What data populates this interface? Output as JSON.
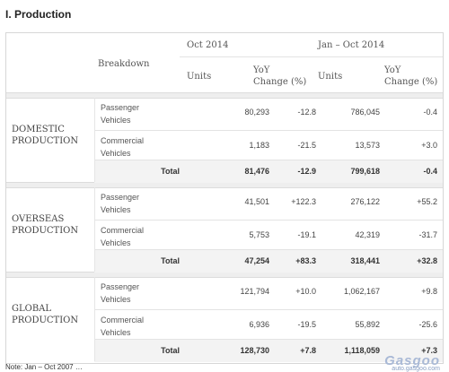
{
  "title": "I. Production",
  "header": {
    "breakdown": "Breakdown",
    "period1": "Oct 2014",
    "period2": "Jan – Oct 2014",
    "units": "Units",
    "yoy_line1": "YoY",
    "yoy_line2": "Change (%)"
  },
  "sections": [
    {
      "label_line1": "DOMESTIC",
      "label_line2": "PRODUCTION",
      "rows": [
        {
          "line1": "Passenger",
          "line2": "Vehicles",
          "oct_units": "80,293",
          "oct_yoy": "-12.8",
          "ytd_units": "786,045",
          "ytd_yoy": "-0.4"
        },
        {
          "line1": "Commercial",
          "line2": "Vehicles",
          "oct_units": "1,183",
          "oct_yoy": "-21.5",
          "ytd_units": "13,573",
          "ytd_yoy": "+3.0"
        }
      ],
      "total": {
        "label": "Total",
        "oct_units": "81,476",
        "oct_yoy": "-12.9",
        "ytd_units": "799,618",
        "ytd_yoy": "-0.4"
      }
    },
    {
      "label_line1": "OVERSEAS",
      "label_line2": "PRODUCTION",
      "rows": [
        {
          "line1": "Passenger",
          "line2": "Vehicles",
          "oct_units": "41,501",
          "oct_yoy": "+122.3",
          "ytd_units": "276,122",
          "ytd_yoy": "+55.2"
        },
        {
          "line1": "Commercial",
          "line2": "Vehicles",
          "oct_units": "5,753",
          "oct_yoy": "-19.1",
          "ytd_units": "42,319",
          "ytd_yoy": "-31.7"
        }
      ],
      "total": {
        "label": "Total",
        "oct_units": "47,254",
        "oct_yoy": "+83.3",
        "ytd_units": "318,441",
        "ytd_yoy": "+32.8"
      }
    },
    {
      "label_line1": "GLOBAL",
      "label_line2": "PRODUCTION",
      "rows": [
        {
          "line1": "Passenger",
          "line2": "Vehicles",
          "oct_units": "121,794",
          "oct_yoy": "+10.0",
          "ytd_units": "1,062,167",
          "ytd_yoy": "+9.8"
        },
        {
          "line1": "Commercial",
          "line2": "Vehicles",
          "oct_units": "6,936",
          "oct_yoy": "-19.5",
          "ytd_units": "55,892",
          "ytd_yoy": "-25.6"
        }
      ],
      "total": {
        "label": "Total",
        "oct_units": "128,730",
        "oct_yoy": "+7.8",
        "ytd_units": "1,118,059",
        "ytd_yoy": "+7.3"
      }
    }
  ],
  "footnote": "Note: Jan – Oct 2007 …",
  "watermark": {
    "line1": "Gasgoo",
    "line2": "auto.gasgoo.com"
  }
}
